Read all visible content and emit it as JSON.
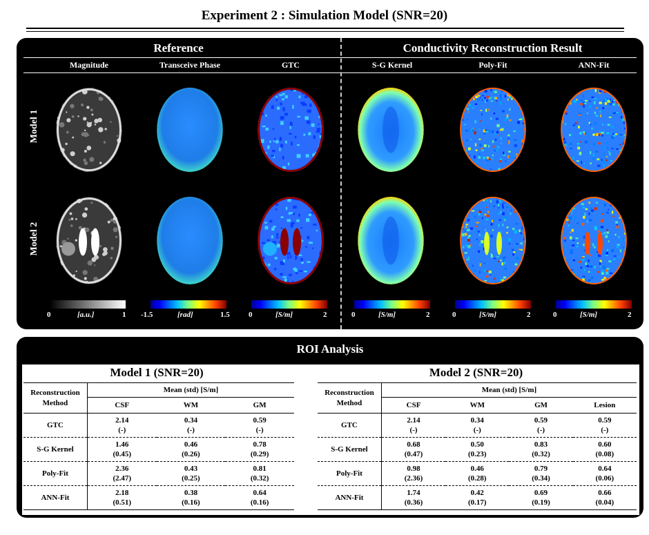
{
  "figure_title": "Experiment 2 : Simulation Model (SNR=20)",
  "reference_header": "Reference",
  "result_header": "Conductivity Reconstruction Result",
  "columns": [
    "Magnitude",
    "Transceive Phase",
    "GTC",
    "S-G Kernel",
    "Poly-Fit",
    "ANN-Fit"
  ],
  "rows": [
    "Model 1",
    "Model 2"
  ],
  "colorbars": [
    {
      "min": "0",
      "max": "1",
      "unit": "[a.u.]",
      "scheme": "gray"
    },
    {
      "min": "-1.5",
      "max": "1.5",
      "unit": "[rad]",
      "scheme": "jet"
    },
    {
      "min": "0",
      "max": "2",
      "unit": "[S/m]",
      "scheme": "jet"
    },
    {
      "min": "0",
      "max": "2",
      "unit": "[S/m]",
      "scheme": "jet"
    },
    {
      "min": "0",
      "max": "2",
      "unit": "[S/m]",
      "scheme": "jet"
    },
    {
      "min": "0",
      "max": "2",
      "unit": "[S/m]",
      "scheme": "jet"
    }
  ],
  "roi": {
    "title": "ROI Analysis",
    "row_header_line1": "Reconstruction",
    "row_header_line2": "Method",
    "mean_header": "Mean (std) [S/m]",
    "model1": {
      "title": "Model 1 (SNR=20)",
      "tissues": [
        "CSF",
        "WM",
        "GM"
      ],
      "rows": [
        {
          "method": "GTC",
          "mean": [
            "2.14",
            "0.34",
            "0.59"
          ],
          "std": [
            "(-)",
            "(-)",
            "(-)"
          ]
        },
        {
          "method": "S-G Kernel",
          "mean": [
            "1.46",
            "0.46",
            "0.78"
          ],
          "std": [
            "(0.45)",
            "(0.26)",
            "(0.29)"
          ]
        },
        {
          "method": "Poly-Fit",
          "mean": [
            "2.36",
            "0.43",
            "0.81"
          ],
          "std": [
            "(2.47)",
            "(0.25)",
            "(0.32)"
          ]
        },
        {
          "method": "ANN-Fit",
          "mean": [
            "2.18",
            "0.38",
            "0.64"
          ],
          "std": [
            "(0.51)",
            "(0.16)",
            "(0.16)"
          ]
        }
      ]
    },
    "model2": {
      "title": "Model 2 (SNR=20)",
      "tissues": [
        "CSF",
        "WM",
        "GM",
        "Lesion"
      ],
      "rows": [
        {
          "method": "GTC",
          "mean": [
            "2.14",
            "0.34",
            "0.59",
            "0.59"
          ],
          "std": [
            "(-)",
            "(-)",
            "(-)",
            "(-)"
          ]
        },
        {
          "method": "S-G Kernel",
          "mean": [
            "0.68",
            "0.50",
            "0.83",
            "0.60"
          ],
          "std": [
            "(0.47)",
            "(0.23)",
            "(0.32)",
            "(0.08)"
          ]
        },
        {
          "method": "Poly-Fit",
          "mean": [
            "0.98",
            "0.46",
            "0.79",
            "0.64"
          ],
          "std": [
            "(2.36)",
            "(0.28)",
            "(0.34)",
            "(0.06)"
          ]
        },
        {
          "method": "ANN-Fit",
          "mean": [
            "1.74",
            "0.42",
            "0.69",
            "0.66"
          ],
          "std": [
            "(0.36)",
            "(0.17)",
            "(0.19)",
            "(0.04)"
          ]
        }
      ]
    }
  }
}
